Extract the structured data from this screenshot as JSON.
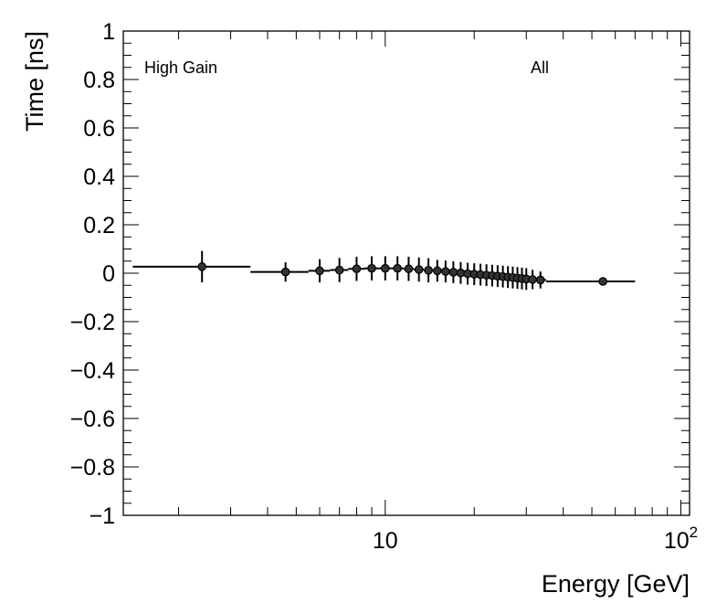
{
  "chart_data": {
    "type": "scatter",
    "xlabel": "Energy [GeV]",
    "ylabel": "Time [ns]",
    "xscale": "log",
    "xlim": [
      1.3,
      107
    ],
    "ylim": [
      -1,
      1
    ],
    "grid": false,
    "annotations": [
      {
        "id": "gain",
        "text": "High Gain",
        "position": "top-left"
      },
      {
        "id": "sel",
        "text": "All",
        "position": "top-right"
      }
    ],
    "y_ticks": [
      {
        "value": 1,
        "label": "1"
      },
      {
        "value": 0.8,
        "label": "0.8"
      },
      {
        "value": 0.6,
        "label": "0.6"
      },
      {
        "value": 0.4,
        "label": "0.4"
      },
      {
        "value": 0.2,
        "label": "0.2"
      },
      {
        "value": 0,
        "label": "0"
      },
      {
        "value": -0.2,
        "label": "−0.2"
      },
      {
        "value": -0.4,
        "label": "−0.4"
      },
      {
        "value": -0.6,
        "label": "−0.6"
      },
      {
        "value": -0.8,
        "label": "−0.8"
      },
      {
        "value": -1,
        "label": "−1"
      }
    ],
    "x_ticks": [
      {
        "value": 10,
        "label": "10"
      },
      {
        "value": 100,
        "label": "10",
        "exponent": "2"
      }
    ],
    "points": [
      {
        "x": 2.4,
        "y": 0.027,
        "yerr": 0.065,
        "xlo": 1.4,
        "xhi": 3.5
      },
      {
        "x": 4.6,
        "y": 0.005,
        "yerr": 0.04,
        "xlo": 3.5,
        "xhi": 5.5
      },
      {
        "x": 6.0,
        "y": 0.01,
        "yerr": 0.048,
        "xlo": 5.5,
        "xhi": 6.5
      },
      {
        "x": 7.0,
        "y": 0.013,
        "yerr": 0.05,
        "xlo": 6.5,
        "xhi": 7.5
      },
      {
        "x": 8.0,
        "y": 0.018,
        "yerr": 0.05,
        "xlo": 7.5,
        "xhi": 8.5
      },
      {
        "x": 9.0,
        "y": 0.02,
        "yerr": 0.05,
        "xlo": 8.5,
        "xhi": 9.5
      },
      {
        "x": 10.0,
        "y": 0.02,
        "yerr": 0.05,
        "xlo": 9.5,
        "xhi": 10.5
      },
      {
        "x": 11.0,
        "y": 0.02,
        "yerr": 0.05,
        "xlo": 10.5,
        "xhi": 11.5
      },
      {
        "x": 12.0,
        "y": 0.018,
        "yerr": 0.05,
        "xlo": 11.5,
        "xhi": 12.5
      },
      {
        "x": 13.0,
        "y": 0.015,
        "yerr": 0.05,
        "xlo": 12.5,
        "xhi": 13.5
      },
      {
        "x": 14.0,
        "y": 0.012,
        "yerr": 0.05,
        "xlo": 13.5,
        "xhi": 14.5
      },
      {
        "x": 15.0,
        "y": 0.01,
        "yerr": 0.045,
        "xlo": 14.5,
        "xhi": 15.5
      },
      {
        "x": 16.0,
        "y": 0.007,
        "yerr": 0.045,
        "xlo": 15.5,
        "xhi": 16.5
      },
      {
        "x": 17.0,
        "y": 0.004,
        "yerr": 0.045,
        "xlo": 16.5,
        "xhi": 17.5
      },
      {
        "x": 18.0,
        "y": 0.001,
        "yerr": 0.045,
        "xlo": 17.5,
        "xhi": 18.5
      },
      {
        "x": 19.0,
        "y": -0.002,
        "yerr": 0.045,
        "xlo": 18.5,
        "xhi": 19.5
      },
      {
        "x": 20.0,
        "y": -0.004,
        "yerr": 0.045,
        "xlo": 19.5,
        "xhi": 20.5
      },
      {
        "x": 21.0,
        "y": -0.006,
        "yerr": 0.045,
        "xlo": 20.5,
        "xhi": 21.5
      },
      {
        "x": 22.0,
        "y": -0.008,
        "yerr": 0.045,
        "xlo": 21.5,
        "xhi": 22.5
      },
      {
        "x": 23.0,
        "y": -0.01,
        "yerr": 0.045,
        "xlo": 22.5,
        "xhi": 23.5
      },
      {
        "x": 24.0,
        "y": -0.012,
        "yerr": 0.045,
        "xlo": 23.5,
        "xhi": 24.5
      },
      {
        "x": 25.0,
        "y": -0.014,
        "yerr": 0.045,
        "xlo": 24.5,
        "xhi": 25.5
      },
      {
        "x": 26.0,
        "y": -0.016,
        "yerr": 0.045,
        "xlo": 25.5,
        "xhi": 26.5
      },
      {
        "x": 27.0,
        "y": -0.018,
        "yerr": 0.045,
        "xlo": 26.5,
        "xhi": 27.5
      },
      {
        "x": 28.0,
        "y": -0.02,
        "yerr": 0.045,
        "xlo": 27.5,
        "xhi": 28.5
      },
      {
        "x": 29.0,
        "y": -0.022,
        "yerr": 0.045,
        "xlo": 28.5,
        "xhi": 29.5
      },
      {
        "x": 30.0,
        "y": -0.024,
        "yerr": 0.045,
        "xlo": 29.5,
        "xhi": 30.5
      },
      {
        "x": 31.5,
        "y": -0.026,
        "yerr": 0.04,
        "xlo": 30.5,
        "xhi": 32.5
      },
      {
        "x": 33.5,
        "y": -0.028,
        "yerr": 0.035,
        "xlo": 32.5,
        "xhi": 35.0
      },
      {
        "x": 54.5,
        "y": -0.034,
        "yerr": 0.0,
        "xlo": 35.0,
        "xhi": 70.0
      }
    ]
  }
}
